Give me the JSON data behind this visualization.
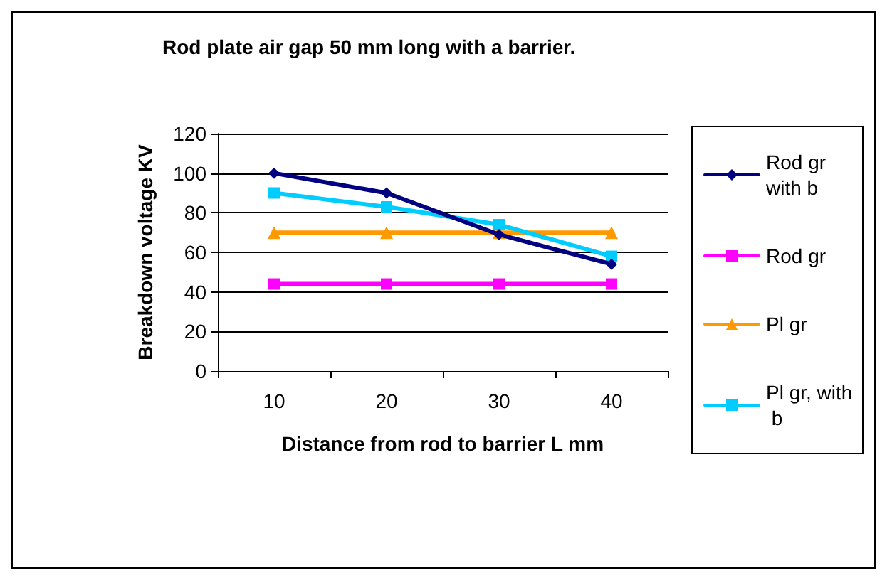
{
  "chart_data": {
    "type": "line",
    "title": "Rod plate air gap 50 mm long with a barrier.",
    "xlabel": "Distance from rod to barrier L mm",
    "ylabel": "Breakdown voltage KV",
    "categories": [
      "10",
      "20",
      "30",
      "40"
    ],
    "series": [
      {
        "name": "Rod gr with b",
        "color": "#000080",
        "marker": "diamond",
        "values": [
          100,
          90,
          69,
          54
        ]
      },
      {
        "name": "Rod gr",
        "color": "#ff00ff",
        "marker": "square",
        "values": [
          44,
          44,
          44,
          44
        ]
      },
      {
        "name": "Pl gr",
        "color": "#ff9900",
        "marker": "triangle",
        "values": [
          70,
          70,
          70,
          70
        ]
      },
      {
        "name": "Pl gr, with b",
        "color": "#00ccff",
        "marker": "square",
        "values": [
          90,
          83,
          74,
          58
        ]
      }
    ],
    "ylim": [
      0,
      120
    ],
    "yticks": [
      0,
      20,
      40,
      60,
      80,
      100,
      120
    ],
    "grid": "y",
    "legend": "right",
    "line_style": "solid"
  }
}
